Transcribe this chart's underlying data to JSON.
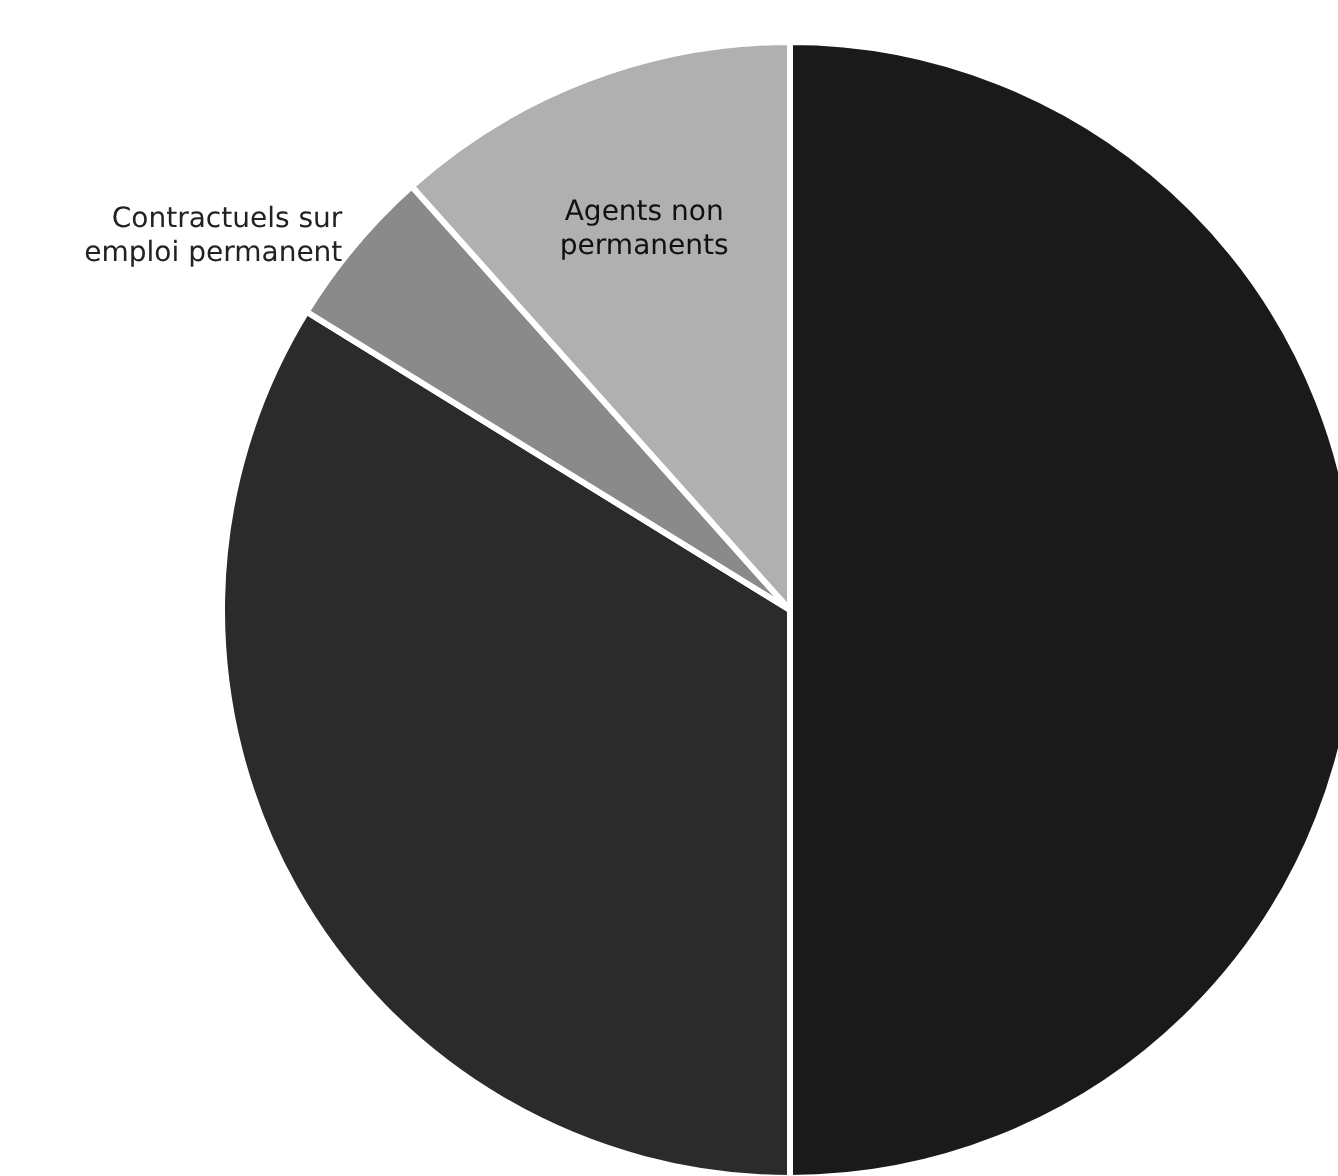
{
  "chart_data": {
    "type": "pie",
    "categories": [
      null,
      null,
      "Contractuels sur emploi permanent",
      "Agents non permanents"
    ],
    "values": [
      50,
      33.8,
      4.6,
      11.6
    ],
    "colors": [
      "#1a1a1a",
      "#2b2b2b",
      "#8a8a8a",
      "#b0b0b0"
    ]
  }
}
